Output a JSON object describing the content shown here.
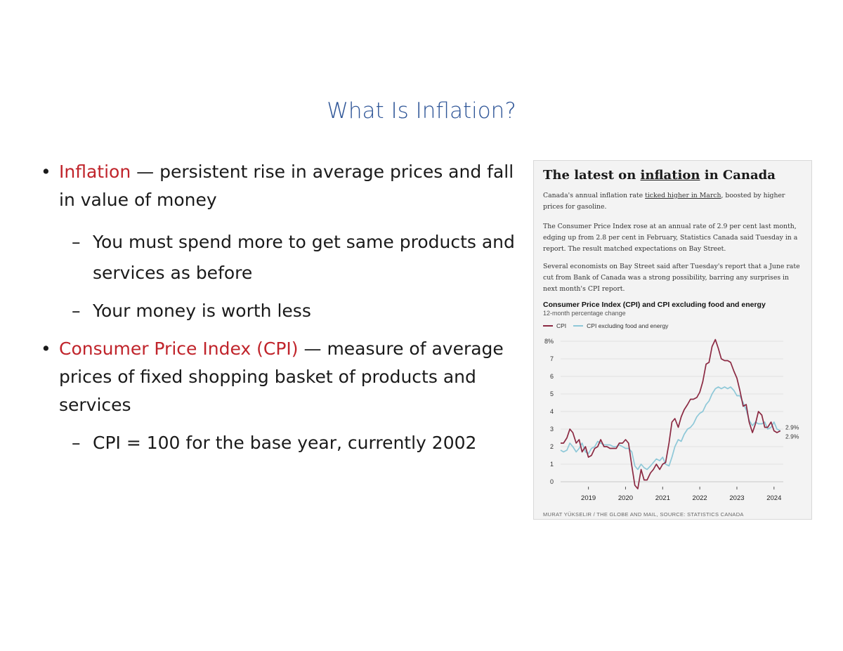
{
  "slide": {
    "title": "What Is Inflation?",
    "bullet1_term": "Inflation",
    "bullet1_text": " — persistent rise in average prices and fall in value of money",
    "bullet1_sub1": "You must spend more to get same products and services as before",
    "bullet1_sub2": "Your money is worth less",
    "bullet2_term": "Consumer Price Index (CPI)",
    "bullet2_text": " — measure of average prices of fixed shopping basket of products and services",
    "bullet2_sub1": "CPI = 100 for the base year, currently 2002",
    "bullet_symbol": "•",
    "dash_symbol": "–"
  },
  "figure": {
    "title_pre": "The latest on ",
    "title_link": "inflation",
    "title_post": " in Canada",
    "p1_pre": "Canada's annual inflation rate ",
    "p1_link": "ticked higher in March",
    "p1_post": ", boosted by higher prices for gasoline.",
    "p2": "The Consumer Price Index rose at an annual rate of 2.9 per cent last month, edging up from 2.8 per cent in February, Statistics Canada said Tuesday in a report. The result matched expectations on Bay Street.",
    "p3": "Several economists on Bay Street said after Tuesday's report that a June rate cut from Bank of Canada was a strong possibility, barring any surprises in next month's CPI report.",
    "credit": "MURAT YÜKSELIR / THE GLOBE AND MAIL, SOURCE: STATISTICS CANADA"
  },
  "chart_data": {
    "type": "line",
    "title": "Consumer Price Index (CPI) and CPI excluding food and energy",
    "subtitle": "12-month percentage change",
    "ylim": [
      0,
      8
    ],
    "yticks": [
      0,
      1,
      2,
      3,
      4,
      5,
      6,
      7,
      8
    ],
    "ytick_labels": [
      "0",
      "1",
      "2",
      "3",
      "4",
      "5",
      "6",
      "7",
      "8%"
    ],
    "xlim": [
      2018.25,
      2024.25
    ],
    "xticks": [
      2019,
      2020,
      2021,
      2022,
      2023,
      2024
    ],
    "xtick_labels": [
      "2019",
      "2020",
      "2021",
      "2022",
      "2023",
      "2024"
    ],
    "grid": true,
    "legend": "top-left",
    "end_labels": [
      "2.9%",
      "2.9%"
    ],
    "series": [
      {
        "name": "CPI",
        "color": "#8b2942",
        "x": [
          2018.25,
          2018.33,
          2018.42,
          2018.5,
          2018.58,
          2018.67,
          2018.75,
          2018.83,
          2018.92,
          2019.0,
          2019.08,
          2019.17,
          2019.25,
          2019.33,
          2019.42,
          2019.5,
          2019.58,
          2019.67,
          2019.75,
          2019.83,
          2019.92,
          2020.0,
          2020.08,
          2020.17,
          2020.25,
          2020.33,
          2020.42,
          2020.5,
          2020.58,
          2020.67,
          2020.75,
          2020.83,
          2020.92,
          2021.0,
          2021.08,
          2021.17,
          2021.25,
          2021.33,
          2021.42,
          2021.5,
          2021.58,
          2021.67,
          2021.75,
          2021.83,
          2021.92,
          2022.0,
          2022.08,
          2022.17,
          2022.25,
          2022.33,
          2022.42,
          2022.5,
          2022.58,
          2022.67,
          2022.75,
          2022.83,
          2022.92,
          2023.0,
          2023.08,
          2023.17,
          2023.25,
          2023.33,
          2023.42,
          2023.5,
          2023.58,
          2023.67,
          2023.75,
          2023.83,
          2023.92,
          2024.0,
          2024.08,
          2024.17
        ],
        "y": [
          2.2,
          2.2,
          2.5,
          3.0,
          2.8,
          2.2,
          2.4,
          1.7,
          2.0,
          1.4,
          1.5,
          1.9,
          2.0,
          2.4,
          2.0,
          2.0,
          1.9,
          1.9,
          1.9,
          2.2,
          2.2,
          2.4,
          2.2,
          0.9,
          -0.2,
          -0.4,
          0.7,
          0.1,
          0.1,
          0.5,
          0.7,
          1.0,
          0.7,
          1.0,
          1.1,
          2.2,
          3.4,
          3.6,
          3.1,
          3.7,
          4.1,
          4.4,
          4.7,
          4.7,
          4.8,
          5.1,
          5.7,
          6.7,
          6.8,
          7.7,
          8.1,
          7.6,
          7.0,
          6.9,
          6.9,
          6.8,
          6.3,
          5.9,
          5.2,
          4.3,
          4.4,
          3.4,
          2.8,
          3.3,
          4.0,
          3.8,
          3.1,
          3.1,
          3.4,
          2.9,
          2.8,
          2.9
        ]
      },
      {
        "name": "CPI excluding food and energy",
        "color": "#8ec8d8",
        "x": [
          2018.25,
          2018.33,
          2018.42,
          2018.5,
          2018.58,
          2018.67,
          2018.75,
          2018.83,
          2018.92,
          2019.0,
          2019.08,
          2019.17,
          2019.25,
          2019.33,
          2019.42,
          2019.5,
          2019.58,
          2019.67,
          2019.75,
          2019.83,
          2019.92,
          2020.0,
          2020.08,
          2020.17,
          2020.25,
          2020.33,
          2020.42,
          2020.5,
          2020.58,
          2020.67,
          2020.75,
          2020.83,
          2020.92,
          2021.0,
          2021.08,
          2021.17,
          2021.25,
          2021.33,
          2021.42,
          2021.5,
          2021.58,
          2021.67,
          2021.75,
          2021.83,
          2021.92,
          2022.0,
          2022.08,
          2022.17,
          2022.25,
          2022.33,
          2022.42,
          2022.5,
          2022.58,
          2022.67,
          2022.75,
          2022.83,
          2022.92,
          2023.0,
          2023.08,
          2023.17,
          2023.25,
          2023.33,
          2023.42,
          2023.5,
          2023.58,
          2023.67,
          2023.75,
          2023.83,
          2023.92,
          2024.0,
          2024.08,
          2024.17
        ],
        "y": [
          1.8,
          1.7,
          1.8,
          2.2,
          2.0,
          1.7,
          1.9,
          2.2,
          1.7,
          1.6,
          1.9,
          2.0,
          2.3,
          2.2,
          2.1,
          2.1,
          2.1,
          2.0,
          2.0,
          2.1,
          2.0,
          1.9,
          1.9,
          1.7,
          0.9,
          0.7,
          1.0,
          0.8,
          0.7,
          0.9,
          1.1,
          1.3,
          1.2,
          1.4,
          1.0,
          0.9,
          1.4,
          2.0,
          2.4,
          2.3,
          2.7,
          3.0,
          3.1,
          3.3,
          3.7,
          3.9,
          4.0,
          4.4,
          4.6,
          5.0,
          5.3,
          5.4,
          5.3,
          5.4,
          5.3,
          5.4,
          5.2,
          4.9,
          4.9,
          4.5,
          4.1,
          3.5,
          3.2,
          3.4,
          3.3,
          3.3,
          3.4,
          3.0,
          3.1,
          3.4,
          3.0,
          2.9
        ]
      }
    ]
  }
}
